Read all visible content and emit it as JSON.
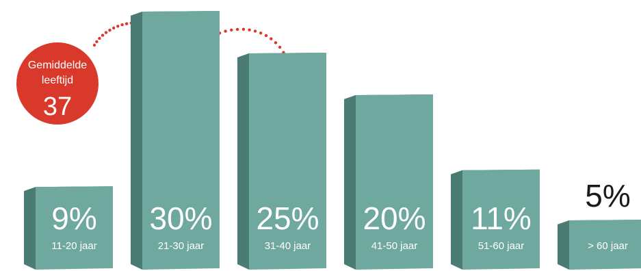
{
  "chart_data": {
    "type": "bar",
    "categories": [
      "11-20 jaar",
      "21-30 jaar",
      "31-40 jaar",
      "41-50 jaar",
      "51-60 jaar",
      "> 60 jaar"
    ],
    "values": [
      9,
      30,
      25,
      20,
      11,
      5
    ],
    "value_labels": [
      "9%",
      "30%",
      "25%",
      "20%",
      "11%",
      "5%"
    ],
    "ylim": [
      0,
      30
    ],
    "grid": false,
    "bar_color": "#6ea89f",
    "bar_side_color": "#4a7c74"
  },
  "badge": {
    "label_line1": "Gemiddelde",
    "label_line2": "leeftijd",
    "value": "37",
    "color": "#d9392b"
  }
}
